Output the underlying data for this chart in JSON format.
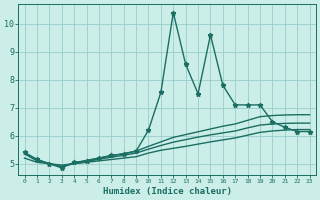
{
  "xlabel": "Humidex (Indice chaleur)",
  "ylabel": "",
  "background_color": "#cceee8",
  "grid_color": "#99cccc",
  "line_color": "#1a6e62",
  "x_ticks": [
    0,
    1,
    2,
    3,
    4,
    5,
    6,
    7,
    8,
    9,
    10,
    11,
    12,
    13,
    14,
    15,
    16,
    17,
    18,
    19,
    20,
    21,
    22,
    23
  ],
  "y_ticks": [
    5,
    6,
    7,
    8,
    9,
    10
  ],
  "ylim": [
    4.6,
    10.7
  ],
  "xlim": [
    -0.5,
    23.5
  ],
  "series": [
    {
      "x": [
        0,
        1,
        2,
        3,
        4,
        5,
        6,
        7,
        8,
        9,
        10,
        11,
        12,
        13,
        14,
        15,
        16,
        17,
        18,
        19,
        20,
        21,
        22,
        23
      ],
      "y": [
        5.4,
        5.15,
        5.0,
        4.85,
        5.05,
        5.1,
        5.2,
        5.3,
        5.35,
        5.45,
        6.2,
        7.55,
        10.4,
        8.55,
        7.5,
        9.6,
        7.8,
        7.1,
        7.1,
        7.1,
        6.5,
        6.3,
        6.15,
        6.15
      ],
      "marker": "*",
      "linewidth": 1.0,
      "markersize": 3.5
    },
    {
      "x": [
        0,
        1,
        2,
        3,
        4,
        5,
        6,
        7,
        8,
        9,
        10,
        11,
        12,
        13,
        14,
        15,
        16,
        17,
        18,
        19,
        20,
        21,
        22,
        23
      ],
      "y": [
        5.2,
        5.05,
        5.0,
        4.95,
        5.0,
        5.05,
        5.1,
        5.15,
        5.2,
        5.25,
        5.38,
        5.48,
        5.55,
        5.62,
        5.7,
        5.78,
        5.85,
        5.92,
        6.02,
        6.12,
        6.17,
        6.2,
        6.22,
        6.22
      ],
      "marker": "",
      "linewidth": 1.0,
      "markersize": 0
    },
    {
      "x": [
        0,
        1,
        2,
        3,
        4,
        5,
        6,
        7,
        8,
        9,
        10,
        11,
        12,
        13,
        14,
        15,
        16,
        17,
        18,
        19,
        20,
        21,
        22,
        23
      ],
      "y": [
        5.35,
        5.1,
        5.0,
        4.9,
        5.0,
        5.08,
        5.16,
        5.23,
        5.3,
        5.38,
        5.52,
        5.65,
        5.77,
        5.86,
        5.95,
        6.03,
        6.1,
        6.17,
        6.28,
        6.38,
        6.42,
        6.44,
        6.45,
        6.45
      ],
      "marker": "",
      "linewidth": 1.0,
      "markersize": 0
    },
    {
      "x": [
        0,
        1,
        2,
        3,
        4,
        5,
        6,
        7,
        8,
        9,
        10,
        11,
        12,
        13,
        14,
        15,
        16,
        17,
        18,
        19,
        20,
        21,
        22,
        23
      ],
      "y": [
        5.4,
        5.15,
        5.0,
        4.9,
        5.02,
        5.12,
        5.2,
        5.28,
        5.36,
        5.45,
        5.62,
        5.78,
        5.94,
        6.04,
        6.14,
        6.24,
        6.34,
        6.42,
        6.55,
        6.68,
        6.72,
        6.74,
        6.75,
        6.75
      ],
      "marker": "",
      "linewidth": 1.0,
      "markersize": 0
    }
  ]
}
